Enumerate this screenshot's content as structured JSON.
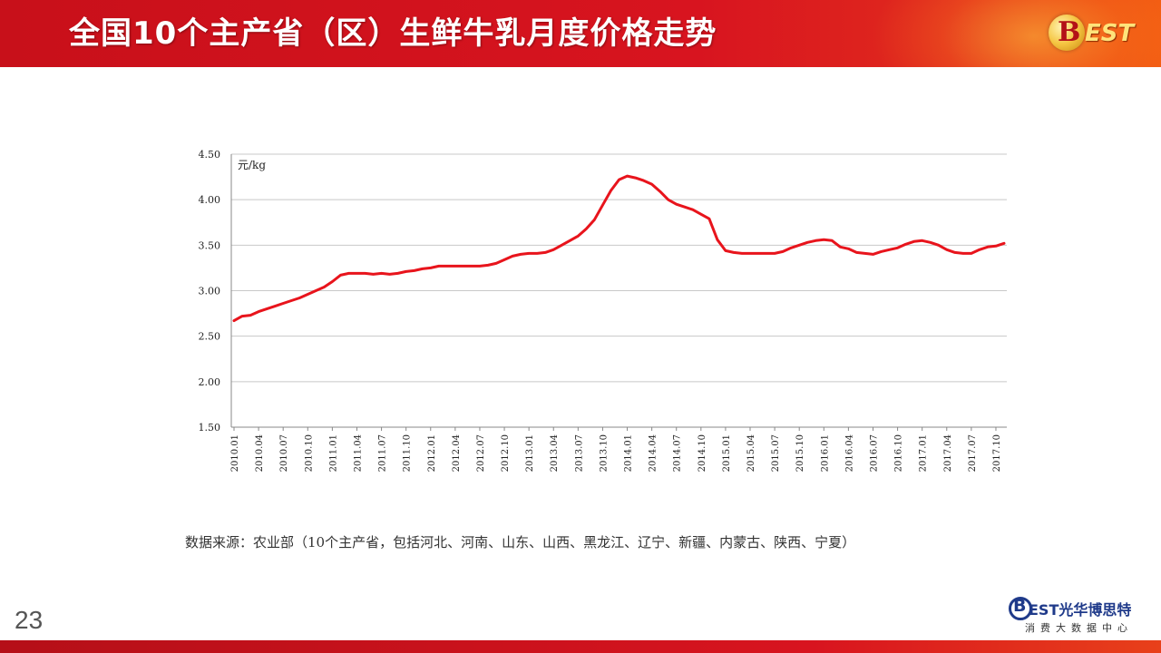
{
  "header": {
    "title": "全国10个主产省（区）生鲜牛乳月度价格走势",
    "logo_b": "B",
    "logo_est": "EST"
  },
  "chart_data": {
    "type": "line",
    "title": "",
    "ylabel": "元/kg",
    "xlabel": "",
    "ylim": [
      1.5,
      4.5
    ],
    "yticks": [
      "4.50",
      "4.00",
      "3.50",
      "3.00",
      "2.50",
      "2.00",
      "1.50"
    ],
    "ytick_values": [
      4.5,
      4.0,
      3.5,
      3.0,
      2.5,
      2.0,
      1.5
    ],
    "grid": true,
    "xtick_labels": [
      "2010.01",
      "2010.04",
      "2010.07",
      "2010.10",
      "2011.01",
      "2011.04",
      "2011.07",
      "2011.10",
      "2012.01",
      "2012.04",
      "2012.07",
      "2012.10",
      "2013.01",
      "2013.04",
      "2013.07",
      "2013.10",
      "2014.01",
      "2014.04",
      "2014.07",
      "2014.10",
      "2015.01",
      "2015.04",
      "2015.07",
      "2015.10",
      "2016.01",
      "2016.04",
      "2016.07",
      "2016.10",
      "2017.01",
      "2017.04",
      "2017.07",
      "2017.10"
    ],
    "series": [
      {
        "color": "#e8141c",
        "values": [
          2.67,
          2.72,
          2.73,
          2.77,
          2.8,
          2.83,
          2.86,
          2.89,
          2.92,
          2.96,
          3.0,
          3.04,
          3.1,
          3.17,
          3.19,
          3.19,
          3.19,
          3.18,
          3.19,
          3.18,
          3.19,
          3.21,
          3.22,
          3.24,
          3.25,
          3.27,
          3.27,
          3.27,
          3.27,
          3.27,
          3.27,
          3.28,
          3.3,
          3.34,
          3.38,
          3.4,
          3.41,
          3.41,
          3.42,
          3.45,
          3.5,
          3.55,
          3.6,
          3.68,
          3.78,
          3.94,
          4.1,
          4.22,
          4.26,
          4.24,
          4.21,
          4.17,
          4.09,
          4.0,
          3.95,
          3.92,
          3.89,
          3.84,
          3.79,
          3.56,
          3.44,
          3.42,
          3.41,
          3.41,
          3.41,
          3.41,
          3.41,
          3.43,
          3.47,
          3.5,
          3.53,
          3.55,
          3.56,
          3.55,
          3.48,
          3.46,
          3.42,
          3.41,
          3.4,
          3.43,
          3.45,
          3.47,
          3.51,
          3.54,
          3.55,
          3.53,
          3.5,
          3.45,
          3.42,
          3.41,
          3.41,
          3.45,
          3.48,
          3.49,
          3.52
        ]
      }
    ]
  },
  "source": "数据来源：农业部（10个主产省，包括河北、河南、山东、山西、黑龙江、辽宁、新疆、内蒙古、陕西、宁夏）",
  "page_number": "23",
  "footer_logo": {
    "b": "B",
    "est": "EST",
    "name_cn": "光华博思特",
    "tagline": "消费大数据中心"
  }
}
